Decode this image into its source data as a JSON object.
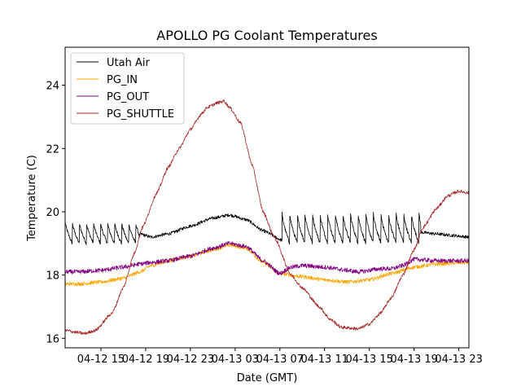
{
  "chart_data": {
    "type": "line",
    "title": "APOLLO PG Coolant Temperatures",
    "xlabel": "Date (GMT)",
    "ylabel": "Temperature (C)",
    "x_units": "hours since 04-12 00:00 GMT",
    "xlim": [
      11.8,
      47.9
    ],
    "ylim": [
      15.7,
      25.2
    ],
    "x_ticks": [
      15,
      19,
      23,
      27,
      31,
      35,
      39,
      43,
      47
    ],
    "x_tick_labels": [
      "04-12 15",
      "04-12 19",
      "04-12 23",
      "04-13 03",
      "04-13 07",
      "04-13 11",
      "04-13 15",
      "04-13 19",
      "04-13 23"
    ],
    "y_ticks": [
      16,
      18,
      20,
      22,
      24
    ],
    "y_tick_labels": [
      "16",
      "18",
      "20",
      "22",
      "24"
    ],
    "grid": false,
    "legend_position": "upper-left",
    "series": [
      {
        "name": "Utah Air",
        "color": "#000000",
        "pattern": "cycling",
        "segments": [
          {
            "kind": "sawtooth",
            "x_start": 11.8,
            "x_end": 18.5,
            "period": 0.63,
            "low": 19.0,
            "high": 19.7
          },
          {
            "kind": "smooth",
            "x": [
              18.5,
              19.5,
              21,
              23,
              25,
              26.5,
              28,
              29.5,
              31.2
            ],
            "y": [
              19.3,
              19.2,
              19.3,
              19.55,
              19.8,
              19.9,
              19.75,
              19.4,
              19.1
            ]
          },
          {
            "kind": "sawtooth",
            "x_start": 31.2,
            "x_end": 43.6,
            "period": 0.68,
            "low": 19.0,
            "high": 19.95
          },
          {
            "kind": "smooth",
            "x": [
              43.6,
              45,
              46.5,
              47.9
            ],
            "y": [
              19.35,
              19.3,
              19.25,
              19.2
            ]
          }
        ],
        "noise": 0.05
      },
      {
        "name": "PG_IN",
        "color": "#ffa500",
        "x": [
          11.8,
          13,
          15,
          17,
          18.5,
          19.5,
          21,
          23,
          25,
          26.5,
          28,
          29.5,
          31,
          33,
          35,
          37,
          39,
          41,
          43,
          45,
          47.9
        ],
        "y": [
          17.72,
          17.72,
          17.78,
          17.9,
          18.1,
          18.3,
          18.45,
          18.6,
          18.8,
          18.95,
          18.85,
          18.4,
          18.05,
          17.95,
          17.85,
          17.78,
          17.85,
          18.05,
          18.25,
          18.35,
          18.4
        ],
        "noise": 0.06
      },
      {
        "name": "PG_OUT",
        "color": "#800080",
        "x": [
          11.8,
          13,
          15,
          17,
          18.5,
          19.5,
          21,
          23,
          25,
          26.5,
          28,
          29.5,
          31,
          32,
          33,
          35,
          37,
          38,
          40,
          41,
          42,
          43,
          45,
          47.9
        ],
        "y": [
          18.1,
          18.1,
          18.15,
          18.25,
          18.35,
          18.4,
          18.45,
          18.6,
          18.85,
          19.0,
          18.9,
          18.45,
          18.05,
          18.25,
          18.3,
          18.25,
          18.15,
          18.1,
          18.2,
          18.2,
          18.3,
          18.5,
          18.45,
          18.45
        ],
        "noise": 0.07
      },
      {
        "name": "PG_SHUTTLE",
        "color": "#a52a2a",
        "x": [
          11.8,
          13,
          13.5,
          14.5,
          16,
          17,
          18,
          18.7,
          20,
          21,
          22,
          23,
          24,
          24.5,
          25.5,
          26,
          26.5,
          27.5,
          28.5,
          29.5,
          30.5,
          32,
          33,
          34.5,
          35.5,
          36.5,
          38,
          39,
          40,
          41,
          42,
          43,
          43.8,
          45,
          46,
          47,
          47.9
        ],
        "y": [
          16.25,
          16.18,
          16.15,
          16.25,
          16.8,
          17.6,
          18.7,
          19.5,
          20.6,
          21.4,
          22.0,
          22.6,
          23.1,
          23.3,
          23.45,
          23.5,
          23.3,
          22.8,
          21.5,
          20.0,
          19.2,
          18.0,
          17.6,
          17.0,
          16.6,
          16.35,
          16.3,
          16.45,
          16.8,
          17.3,
          18.0,
          18.8,
          19.5,
          20.1,
          20.5,
          20.65,
          20.6
        ],
        "noise": 0.05
      }
    ]
  }
}
